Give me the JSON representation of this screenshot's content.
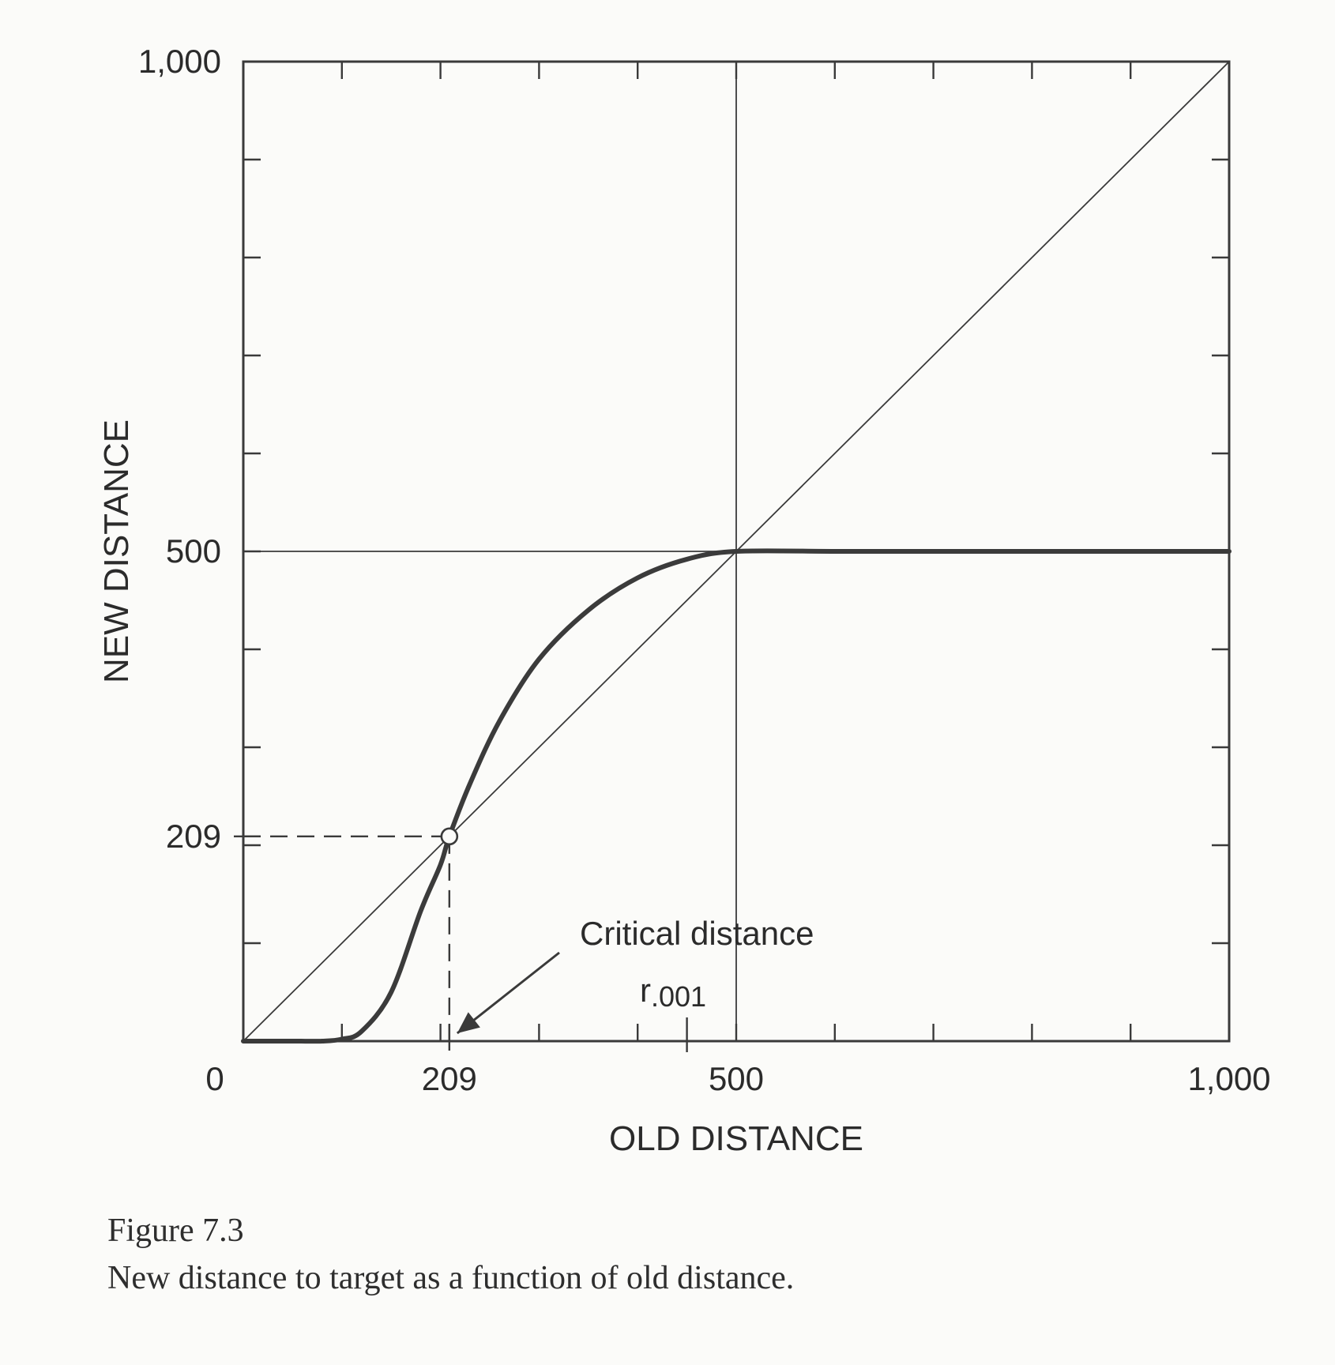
{
  "chart_data": {
    "type": "line",
    "xlabel": "OLD DISTANCE",
    "ylabel": "NEW DISTANCE",
    "xlim": [
      0,
      1000
    ],
    "ylim": [
      0,
      1000
    ],
    "x_tick_labels": [
      {
        "value": 0,
        "label": "0"
      },
      {
        "value": 209,
        "label": "209"
      },
      {
        "value": 500,
        "label": "500"
      },
      {
        "value": 1000,
        "label": "1,000"
      }
    ],
    "y_tick_labels": [
      {
        "value": 209,
        "label": "209"
      },
      {
        "value": 500,
        "label": "500"
      },
      {
        "value": 1000,
        "label": "1,000"
      }
    ],
    "minor_tick_step": 100,
    "grid": false,
    "reference_lines": {
      "diagonal": {
        "x": [
          0,
          1000
        ],
        "y": [
          0,
          1000
        ]
      },
      "vertical_x": 500,
      "horizontal_y": 500
    },
    "series": [
      {
        "x": [
          0,
          50,
          80,
          100,
          120,
          150,
          180,
          200,
          209,
          230,
          260,
          300,
          350,
          400,
          450,
          500,
          600,
          700,
          800,
          900,
          1000
        ],
        "y": [
          0,
          0,
          0,
          2,
          10,
          50,
          133,
          180,
          209,
          263,
          327,
          390,
          440,
          473,
          492,
          500,
          500,
          500,
          500,
          500,
          500
        ]
      }
    ],
    "marked_point": {
      "x": 209,
      "y": 209
    },
    "annotations": [
      {
        "text": "Critical distance",
        "points_to_x": 209
      },
      {
        "text": "r",
        "subscript": ".001"
      }
    ]
  },
  "caption": {
    "label": "Figure 7.3",
    "text": "New distance to target as a function of old distance."
  }
}
